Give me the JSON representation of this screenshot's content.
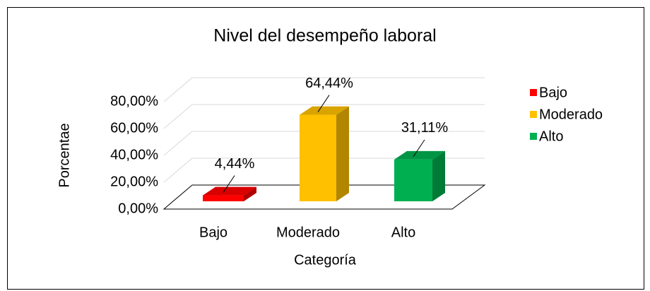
{
  "chart_data": {
    "type": "bar3d",
    "title": "Nivel del desempeño laboral",
    "xlabel": "Categoría",
    "ylabel": "Porcentae",
    "categories": [
      "Bajo",
      "Moderado",
      "Alto"
    ],
    "values": [
      4.44,
      64.44,
      31.11
    ],
    "value_labels": [
      "4,44%",
      "64,44%",
      "31,11%"
    ],
    "colors": [
      "#ff0000",
      "#ffc000",
      "#00b050"
    ],
    "ylim": [
      0,
      80
    ],
    "yticks": [
      {
        "value": 0,
        "label": "0,00%"
      },
      {
        "value": 20,
        "label": "20,00%"
      },
      {
        "value": 40,
        "label": "40,00%"
      },
      {
        "value": 60,
        "label": "60,00%"
      },
      {
        "value": 80,
        "label": "80,00%"
      }
    ],
    "grid": true,
    "legend": "right"
  }
}
